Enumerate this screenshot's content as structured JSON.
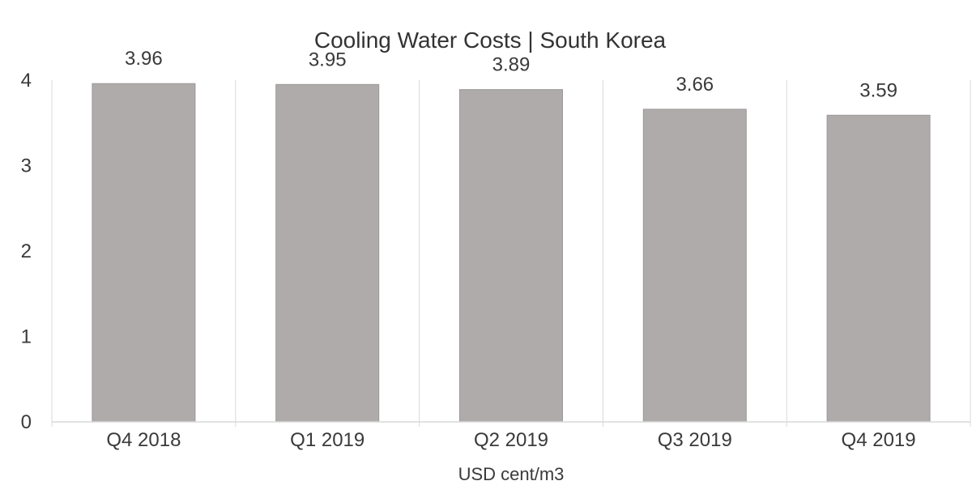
{
  "chart_data": {
    "type": "bar",
    "title": "Cooling Water Costs | South Korea",
    "categories": [
      "Q4 2018",
      "Q1 2019",
      "Q2 2019",
      "Q3 2019",
      "Q4 2019"
    ],
    "values": [
      3.96,
      3.95,
      3.89,
      3.66,
      3.59
    ],
    "data_labels": [
      "3.96",
      "3.95",
      "3.89",
      "3.66",
      "3.59"
    ],
    "xlabel": "USD cent/m3",
    "ylabel": "",
    "ylim": [
      0,
      4
    ],
    "yticks": [
      "0",
      "1",
      "2",
      "3",
      "4"
    ],
    "grid": "vertical separators between categories",
    "legend": "none",
    "colors": {
      "bar": "#afabab",
      "bar_edge": "#9c9898",
      "grid": "#d9d9d9",
      "text": "#3a3a3a"
    }
  }
}
